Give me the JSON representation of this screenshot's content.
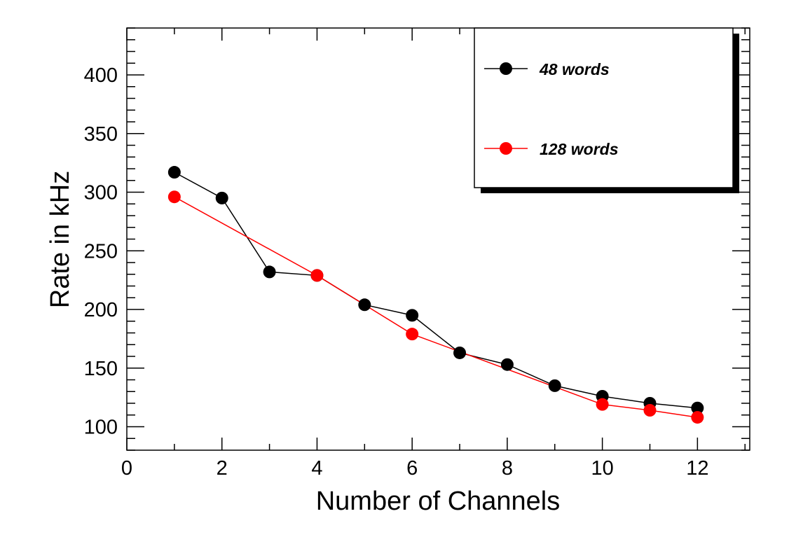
{
  "chart_data": {
    "type": "line",
    "title": "",
    "xlabel": "Number of Channels",
    "ylabel": "Rate in kHz",
    "xlim": [
      0,
      13.1
    ],
    "ylim": [
      80,
      440
    ],
    "xticks": [
      0,
      2,
      4,
      6,
      8,
      10,
      12
    ],
    "yticks": [
      100,
      150,
      200,
      250,
      300,
      350,
      400
    ],
    "grid": false,
    "legend_position": "top-right",
    "series": [
      {
        "name": "48 words",
        "color": "#000000",
        "x": [
          1,
          2,
          3,
          4,
          5,
          6,
          7,
          8,
          9,
          10,
          11,
          12
        ],
        "y": [
          317,
          295,
          232,
          229,
          204,
          195,
          163,
          153,
          135,
          126,
          120,
          116
        ]
      },
      {
        "name": "128 words",
        "color": "#ff0000",
        "x": [
          1,
          4,
          6,
          10,
          11,
          12
        ],
        "y": [
          296,
          229,
          179,
          119,
          114,
          108
        ]
      }
    ]
  }
}
